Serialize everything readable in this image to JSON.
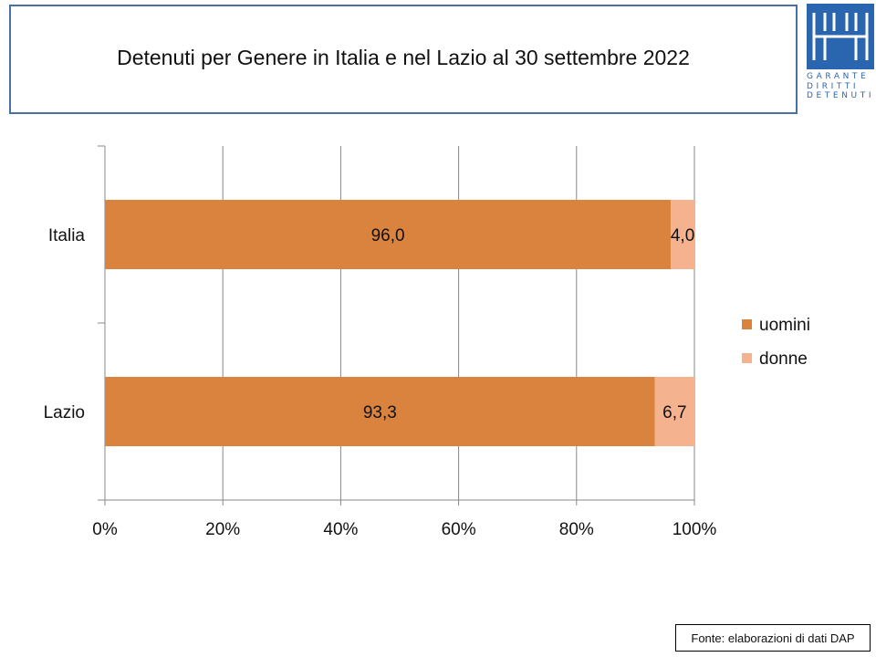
{
  "logo": {
    "lines": [
      "GARANTE",
      "DIRITTI",
      "DETENUTI"
    ],
    "color": "#2a66b0"
  },
  "chart_data": {
    "type": "bar",
    "orientation": "horizontal",
    "stacked": "percent",
    "title": "Detenuti per Genere in Italia e nel Lazio al 30 settembre 2022",
    "categories": [
      "Italia",
      "Lazio"
    ],
    "series": [
      {
        "name": "uomini",
        "values": [
          96.0,
          93.3
        ],
        "labels": [
          "96,0",
          "93,3"
        ],
        "color": "#d9833f"
      },
      {
        "name": "donne",
        "values": [
          4.0,
          6.7
        ],
        "labels": [
          "4,0",
          "6,7"
        ],
        "color": "#f5b28e"
      }
    ],
    "xticks": [
      "0%",
      "20%",
      "40%",
      "60%",
      "80%",
      "100%"
    ],
    "xlim": [
      0,
      100
    ],
    "grid": true,
    "legend": "right"
  },
  "source": "Fonte: elaborazioni di dati DAP"
}
